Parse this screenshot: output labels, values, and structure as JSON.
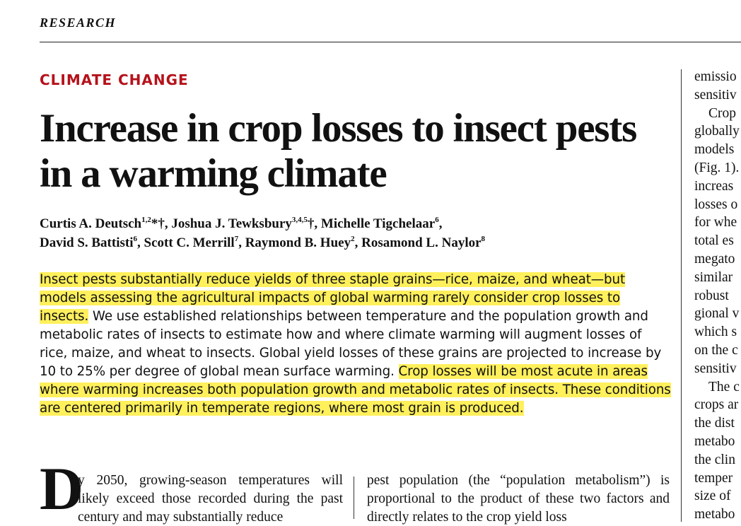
{
  "header": {
    "section": "RESEARCH"
  },
  "article": {
    "kicker": "CLIMATE CHANGE",
    "title": "Increase in crop losses to insect pests in a warming climate",
    "authors": [
      {
        "name": "Curtis A. Deutsch",
        "aff": "1,2",
        "marks": "*†",
        "sep": ", "
      },
      {
        "name": "Joshua J. Tewksbury",
        "aff": "3,4,5",
        "marks": "†",
        "sep": ", "
      },
      {
        "name": "Michelle Tigchelaar",
        "aff": "6",
        "marks": "",
        "sep": ","
      },
      {
        "name": "David S. Battisti",
        "aff": "6",
        "marks": "",
        "sep": ", "
      },
      {
        "name": "Scott C. Merrill",
        "aff": "7",
        "marks": "",
        "sep": ", "
      },
      {
        "name": "Raymond B. Huey",
        "aff": "2",
        "marks": "",
        "sep": ", "
      },
      {
        "name": "Rosamond L. Naylor",
        "aff": "8",
        "marks": "",
        "sep": ""
      }
    ],
    "abstract": {
      "hl1": "Insect pests substantially reduce yields of three staple grains—rice, maize, and wheat—but models assessing the agricultural impacts of global warming rarely consider crop losses to insects.",
      "body": " We use established relationships between temperature and the population growth and metabolic rates of insects to estimate how and where climate warming will augment losses of rice, maize, and wheat to insects. Global yield losses of these grains are projected to increase by 10 to 25% per degree of global mean surface warming. ",
      "hl2": "Crop losses will be most acute in areas where warming increases both population growth and metabolic rates of insects. These conditions are centered primarily in temperate regions, where most grain is produced."
    },
    "body": {
      "dropcap": "D",
      "col1": "y 2050, growing-season temperatures will likely exceed those recorded during the past century and may substantially reduce",
      "col2": "pest population (the “population metabolism”) is proportional to the product of these two factors and directly relates to the crop yield loss"
    },
    "right_column": [
      {
        "text": "emissio",
        "indent": false
      },
      {
        "text": "sensitiv",
        "indent": false
      },
      {
        "text": "Crop",
        "indent": true
      },
      {
        "text": "globally",
        "indent": false
      },
      {
        "text": "models",
        "indent": false
      },
      {
        "text": "(Fig. 1).",
        "indent": false
      },
      {
        "text": "increas",
        "indent": false
      },
      {
        "text": "losses o",
        "indent": false
      },
      {
        "text": "for whe",
        "indent": false
      },
      {
        "text": "total es",
        "indent": false
      },
      {
        "text": "megato",
        "indent": false
      },
      {
        "text": "similar",
        "indent": false
      },
      {
        "text": "robust",
        "indent": false
      },
      {
        "text": "gional v",
        "indent": false
      },
      {
        "text": "which s",
        "indent": false
      },
      {
        "text": "on the c",
        "indent": false
      },
      {
        "text": "sensitiv",
        "indent": false
      },
      {
        "text": "The c",
        "indent": true
      },
      {
        "text": "crops ar",
        "indent": false
      },
      {
        "text": "the dist",
        "indent": false
      },
      {
        "text": "metabo",
        "indent": false
      },
      {
        "text": "the clin",
        "indent": false
      },
      {
        "text": "temper",
        "indent": false
      },
      {
        "text": "size of",
        "indent": false
      },
      {
        "text": "metabo",
        "indent": false
      }
    ]
  }
}
